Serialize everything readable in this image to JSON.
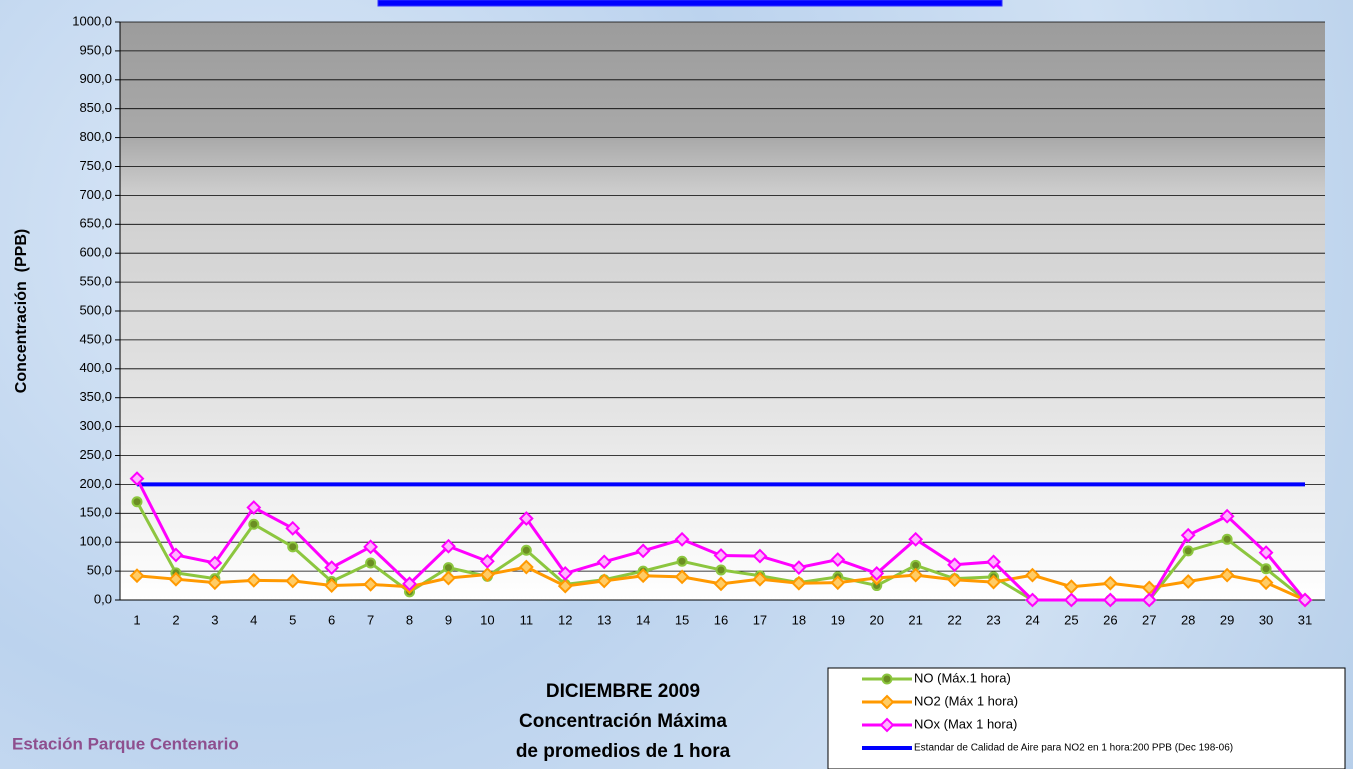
{
  "chart_data": {
    "type": "line",
    "y_label": "Concentración  (PPB)",
    "title_lines": [
      "DICIEMBRE 2009",
      "Concentración Máxima",
      "de promedios de 1 hora"
    ],
    "station": "Estación Parque Centenario",
    "categories": [
      "1",
      "2",
      "3",
      "4",
      "5",
      "6",
      "7",
      "8",
      "9",
      "10",
      "11",
      "12",
      "13",
      "14",
      "15",
      "16",
      "17",
      "18",
      "19",
      "20",
      "21",
      "22",
      "23",
      "24",
      "25",
      "26",
      "27",
      "28",
      "29",
      "30",
      "31"
    ],
    "ylim": [
      0,
      1000
    ],
    "yticks": [
      {
        "value": 0,
        "label": "0,0"
      },
      {
        "value": 50,
        "label": "50,0"
      },
      {
        "value": 100,
        "label": "100,0"
      },
      {
        "value": 150,
        "label": "150,0"
      },
      {
        "value": 200,
        "label": "200,0"
      },
      {
        "value": 250,
        "label": "250,0"
      },
      {
        "value": 300,
        "label": "300,0"
      },
      {
        "value": 350,
        "label": "350,0"
      },
      {
        "value": 400,
        "label": "400,0"
      },
      {
        "value": 450,
        "label": "450,0"
      },
      {
        "value": 500,
        "label": "500,0"
      },
      {
        "value": 550,
        "label": "550,0"
      },
      {
        "value": 600,
        "label": "600,0"
      },
      {
        "value": 650,
        "label": "650,0"
      },
      {
        "value": 700,
        "label": "700,0"
      },
      {
        "value": 750,
        "label": "750,0"
      },
      {
        "value": 800,
        "label": "800,0"
      },
      {
        "value": 850,
        "label": "850,0"
      },
      {
        "value": 900,
        "label": "900,0"
      },
      {
        "value": 950,
        "label": "950,0"
      },
      {
        "value": 1000,
        "label": "1000,0"
      }
    ],
    "grid": true,
    "series": [
      {
        "name": "NO (Máx.1 hora)",
        "color": "#8cc63f",
        "marker": "circle",
        "marker_color": "#6b8e23",
        "values": [
          170,
          47,
          37,
          131,
          92,
          32,
          64,
          14,
          56,
          41,
          86,
          27,
          35,
          50,
          67,
          52,
          42,
          30,
          40,
          25,
          60,
          37,
          40,
          0,
          0,
          0,
          0,
          85,
          105,
          54,
          0
        ]
      },
      {
        "name": "NO2 (Máx 1 hora)",
        "color": "#ff9900",
        "marker": "diamond",
        "marker_color": "#ffcc66",
        "values": [
          42,
          36,
          30,
          34,
          33,
          25,
          27,
          23,
          38,
          44,
          57,
          24,
          33,
          42,
          40,
          28,
          36,
          29,
          30,
          38,
          43,
          35,
          31,
          43,
          23,
          29,
          21,
          32,
          43,
          30,
          0
        ]
      },
      {
        "name": "NOx (Max 1 hora)",
        "color": "#ff00ff",
        "marker": "diamond",
        "marker_color": "#ffb3ff",
        "values": [
          210,
          78,
          64,
          160,
          124,
          56,
          92,
          28,
          93,
          67,
          141,
          46,
          66,
          85,
          105,
          77,
          76,
          56,
          70,
          46,
          105,
          61,
          66,
          0,
          0,
          0,
          0,
          112,
          145,
          82,
          0
        ]
      },
      {
        "name": "Estandar de Calidad de Aire para NO2 en 1 hora:200 PPB (Dec 198-06)",
        "color": "#0000ff",
        "marker": null,
        "values": [
          200,
          200,
          200,
          200,
          200,
          200,
          200,
          200,
          200,
          200,
          200,
          200,
          200,
          200,
          200,
          200,
          200,
          200,
          200,
          200,
          200,
          200,
          200,
          200,
          200,
          200,
          200,
          200,
          200,
          200,
          200
        ]
      }
    ]
  }
}
